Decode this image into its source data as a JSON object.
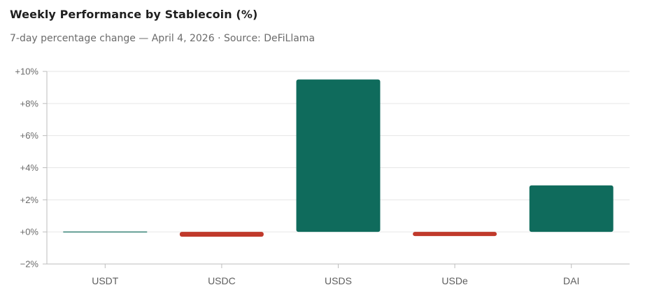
{
  "chart_data": {
    "type": "bar",
    "title": "Weekly Performance by Stablecoin (%)",
    "subtitle": "7-day percentage change — April 4, 2026 · Source: DeFiLlama",
    "categories": [
      "USDT",
      "USDC",
      "USDS",
      "USDe",
      "DAI"
    ],
    "values": [
      0.0,
      -0.3,
      9.5,
      -0.2,
      2.9
    ],
    "ylim": [
      -2,
      10
    ],
    "yticks": [
      -2,
      0,
      2,
      4,
      6,
      8,
      10
    ],
    "ytick_labels": [
      "−2%",
      "+0%",
      "+2%",
      "+4%",
      "+6%",
      "+8%",
      "+10%"
    ],
    "xlabel": "",
    "ylabel": "",
    "grid": "horizontal",
    "legend": "none",
    "colors": {
      "positive": "#0f6b5c",
      "negative": "#c0392b",
      "grid": "#e6e6e6",
      "axis": "#bdbdbd"
    }
  }
}
